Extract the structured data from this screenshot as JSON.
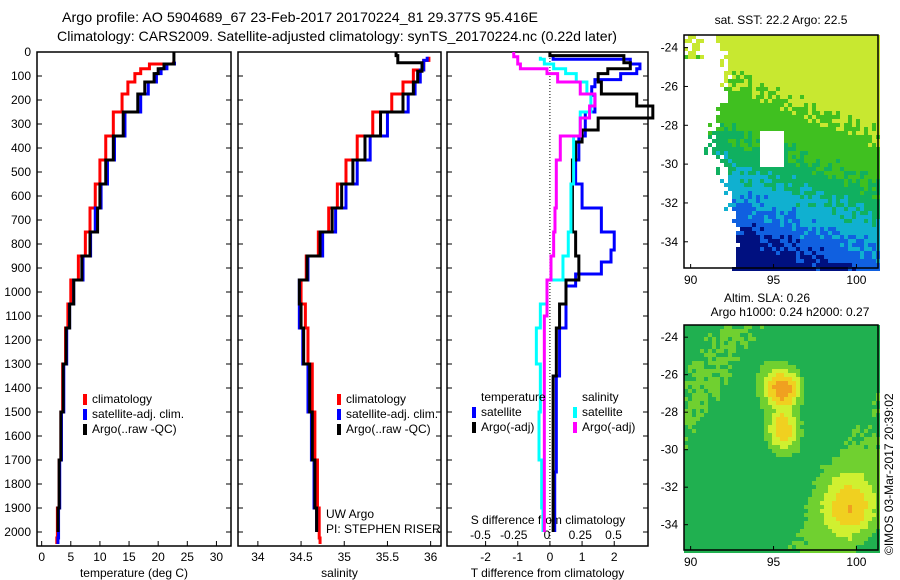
{
  "title_line1": "Argo profile: AO 5904689_67 23-Feb-2017 20170224_81 29.377S 95.416E",
  "title_line2": "Climatology: CARS2009. Satellite-adjusted climatology: synTS_20170224.nc (0.22d later)",
  "watermark": "©IMOS 03-Mar-2017 20:39:02",
  "depth_ticks": [
    0,
    100,
    200,
    300,
    400,
    500,
    600,
    700,
    800,
    900,
    1000,
    1100,
    1200,
    1300,
    1400,
    1500,
    1600,
    1700,
    1800,
    1900,
    2000
  ],
  "colors": {
    "climatology": "#ff0000",
    "satellite": "#0000ff",
    "argo": "#000000",
    "sal_satellite": "#00ffff",
    "sal_argo": "#ff00ff"
  },
  "chart_data": [
    {
      "type": "line",
      "xlabel": "temperature (deg C)",
      "ylabel": "depth",
      "xlim": [
        -0.8,
        32.5
      ],
      "ylim": [
        2050,
        0
      ],
      "xticks": [
        0,
        5,
        10,
        15,
        20,
        25,
        30
      ],
      "legend": {
        "placement": "lower-middle",
        "entries": [
          "climatology",
          "satellite-adj. clim.",
          "Argo(..raw -QC)"
        ]
      },
      "series": [
        {
          "name": "climatology",
          "color": "#ff0000",
          "depth": [
            40,
            60,
            80,
            100,
            150,
            200,
            300,
            400,
            500,
            600,
            700,
            800,
            900,
            1000,
            1100,
            1200,
            1400,
            1600,
            1800,
            2000,
            2050
          ],
          "values": [
            22.6,
            18.5,
            17,
            16,
            14.8,
            13.8,
            12.3,
            11,
            10,
            9.2,
            8.3,
            7.5,
            6.3,
            5,
            4.5,
            4.1,
            3.6,
            3.3,
            3,
            2.7,
            2.6
          ]
        },
        {
          "name": "satellite-adj. clim.",
          "color": "#0000ff",
          "depth": [
            40,
            60,
            80,
            100,
            150,
            200,
            300,
            400,
            500,
            600,
            700,
            800,
            900,
            1000,
            1100,
            1200,
            1400,
            1600,
            1800,
            2000,
            2050
          ],
          "values": [
            22.8,
            21.5,
            20.5,
            19.7,
            18.3,
            17,
            14.3,
            12.5,
            11.3,
            10.2,
            9.2,
            8.4,
            7.1,
            5.5,
            4.8,
            4.3,
            3.8,
            3.4,
            3.1,
            2.9,
            2.8
          ]
        },
        {
          "name": "Argo(..raw -QC)",
          "color": "#000000",
          "depth": [
            0,
            40,
            60,
            80,
            100,
            150,
            200,
            300,
            400,
            500,
            600,
            700,
            800,
            900,
            1000,
            1100,
            1200,
            1400,
            1600,
            1800,
            2000
          ],
          "values": [
            22.7,
            22.7,
            21,
            20,
            19.3,
            17.7,
            16.5,
            14,
            12.3,
            11,
            10,
            9.6,
            8.3,
            6.9,
            5.5,
            4.8,
            4.2,
            3.7,
            3.3,
            3,
            2.8
          ]
        }
      ]
    },
    {
      "type": "line",
      "xlabel": "salinity",
      "ylabel": "depth",
      "xlim": [
        33.77,
        36.12
      ],
      "ylim": [
        2050,
        0
      ],
      "xticks": [
        34,
        34.5,
        35,
        35.5,
        36
      ],
      "legend": {
        "placement": "lower-middle",
        "entries": [
          "climatology",
          "satellite-adj. clim.",
          "Argo(..raw -QC)"
        ]
      },
      "annotation_lines": [
        "UW Argo",
        "PI: STEPHEN RISER"
      ],
      "series": [
        {
          "name": "climatology",
          "color": "#ff0000",
          "depth": [
            20,
            50,
            100,
            150,
            200,
            300,
            400,
            500,
            600,
            700,
            800,
            900,
            1000,
            1100,
            1200,
            1400,
            1600,
            1800,
            2000,
            2050
          ],
          "values": [
            35.98,
            35.92,
            35.8,
            35.68,
            35.55,
            35.33,
            35.15,
            35.02,
            34.92,
            34.82,
            34.7,
            34.56,
            34.5,
            34.55,
            34.58,
            34.63,
            34.66,
            34.69,
            34.71,
            34.72
          ]
        },
        {
          "name": "satellite-adj. clim.",
          "color": "#0000ff",
          "depth": [
            20,
            50,
            100,
            150,
            200,
            300,
            400,
            500,
            600,
            700,
            800,
            900,
            1000,
            1100,
            1200,
            1400,
            1600,
            1800,
            2000
          ],
          "values": [
            35.96,
            35.92,
            35.88,
            35.82,
            35.74,
            35.5,
            35.3,
            35.15,
            35.02,
            34.9,
            34.75,
            34.58,
            34.48,
            34.48,
            34.52,
            34.58,
            34.62,
            34.65,
            34.68
          ]
        },
        {
          "name": "Argo(..raw -QC)",
          "color": "#000000",
          "depth": [
            0,
            30,
            60,
            100,
            150,
            200,
            300,
            400,
            500,
            600,
            700,
            800,
            900,
            1000,
            1100,
            1200,
            1400,
            1600,
            1800,
            2000
          ],
          "values": [
            35.6,
            35.62,
            35.9,
            35.85,
            35.8,
            35.68,
            35.42,
            35.24,
            35.1,
            34.97,
            34.86,
            34.72,
            34.57,
            34.48,
            34.5,
            34.53,
            34.6,
            34.63,
            34.66,
            34.68
          ]
        }
      ]
    },
    {
      "type": "line",
      "xlabel": "T difference from climatology",
      "x2label": "S difference from climatology",
      "ylabel": "depth",
      "xlim": [
        -3.2,
        3.05
      ],
      "ylim": [
        2050,
        0
      ],
      "xticks": [
        -2,
        -1,
        0,
        1,
        2
      ],
      "x2ticks": [
        "-0.5",
        "-0.25",
        "0",
        "0.25",
        "0.5"
      ],
      "x2values": [
        -0.5,
        -0.25,
        0,
        0.25,
        0.5
      ],
      "legend": {
        "placement": "lower-middle",
        "groups": [
          {
            "title": "temperature",
            "entries": [
              "satellite",
              "Argo(-adj)"
            ]
          },
          {
            "title": "salinity",
            "entries": [
              "satellite",
              "Argo(-adj)"
            ]
          }
        ]
      },
      "series": [
        {
          "name": "temperature satellite",
          "axis": "T",
          "color": "#0000ff",
          "depth": [
            20,
            40,
            60,
            80,
            100,
            130,
            160,
            200,
            300,
            400,
            500,
            600,
            700,
            800,
            850,
            900,
            950,
            1000,
            1100,
            1200,
            1500,
            2000
          ],
          "values": [
            0.1,
            2.5,
            2.8,
            2.7,
            2.2,
            1.4,
            1.3,
            1.4,
            1.1,
            0.9,
            0.8,
            1.0,
            1.6,
            2.0,
            1.9,
            1.6,
            0.8,
            0.5,
            0.5,
            0.3,
            0.2,
            0.15
          ]
        },
        {
          "name": "temperature Argo(-adj)",
          "axis": "T",
          "color": "#000000",
          "depth": [
            0,
            30,
            60,
            80,
            100,
            150,
            200,
            250,
            300,
            350,
            400,
            500,
            600,
            700,
            800,
            900,
            1000,
            1100,
            1200,
            1500,
            2000
          ],
          "values": [
            0,
            2.3,
            2.5,
            1.8,
            1.5,
            1.6,
            2.7,
            3.2,
            1.5,
            1.0,
            0.8,
            0.7,
            0.7,
            0.7,
            0.8,
            0.9,
            0.5,
            0.3,
            0.2,
            0.1,
            0.1
          ]
        },
        {
          "name": "salinity satellite",
          "axis": "S",
          "color": "#00ffff",
          "depth": [
            20,
            40,
            60,
            80,
            100,
            150,
            200,
            300,
            400,
            500,
            600,
            700,
            800,
            900,
            1000,
            1100,
            1200,
            1400,
            1600,
            1800,
            2000
          ],
          "values": [
            -0.05,
            -0.02,
            0.05,
            0.14,
            0.22,
            0.3,
            0.33,
            0.25,
            0.2,
            0.2,
            0.18,
            0.18,
            0.16,
            0.12,
            0.0,
            -0.05,
            -0.08,
            -0.05,
            -0.06,
            -0.04,
            -0.03
          ]
        },
        {
          "name": "salinity Argo(-adj)",
          "axis": "S",
          "color": "#ff00ff",
          "depth": [
            0,
            40,
            60,
            80,
            100,
            150,
            200,
            250,
            300,
            400,
            500,
            600,
            700,
            800,
            900,
            1000,
            1200,
            1500,
            2000
          ],
          "values": [
            -0.25,
            -0.22,
            -0.2,
            0.0,
            0.08,
            0.25,
            0.36,
            0.32,
            0.25,
            0.1,
            0.07,
            0.07,
            0.06,
            0.05,
            0.03,
            0.0,
            -0.02,
            -0.02,
            -0.02
          ]
        }
      ]
    },
    {
      "type": "heatmap",
      "title": "sat. SST: 22.2 Argo: 22.5",
      "xlim": [
        89.6,
        101.3
      ],
      "ylim": [
        -35.35,
        -23.35
      ],
      "xticks": [
        "90",
        "95",
        "100"
      ],
      "xvalues": [
        90,
        95,
        100
      ],
      "yticks": [
        "-24",
        "-26",
        "-28",
        "-30",
        "-32",
        "-34"
      ],
      "yvalues": [
        -24,
        -26,
        -28,
        -30,
        -32,
        -34
      ]
    },
    {
      "type": "heatmap",
      "title": "Altim. SLA: 0.26",
      "subtitle": "Argo h1000: 0.24 h2000: 0.27",
      "xlim": [
        89.6,
        101.3
      ],
      "ylim": [
        -35.35,
        -23.35
      ],
      "xticks": [
        "90",
        "95",
        "100"
      ],
      "xvalues": [
        90,
        95,
        100
      ],
      "yticks": [
        "-24",
        "-26",
        "-28",
        "-30",
        "-32",
        "-34"
      ],
      "yvalues": [
        -24,
        -26,
        -28,
        -30,
        -32,
        -34
      ]
    }
  ]
}
